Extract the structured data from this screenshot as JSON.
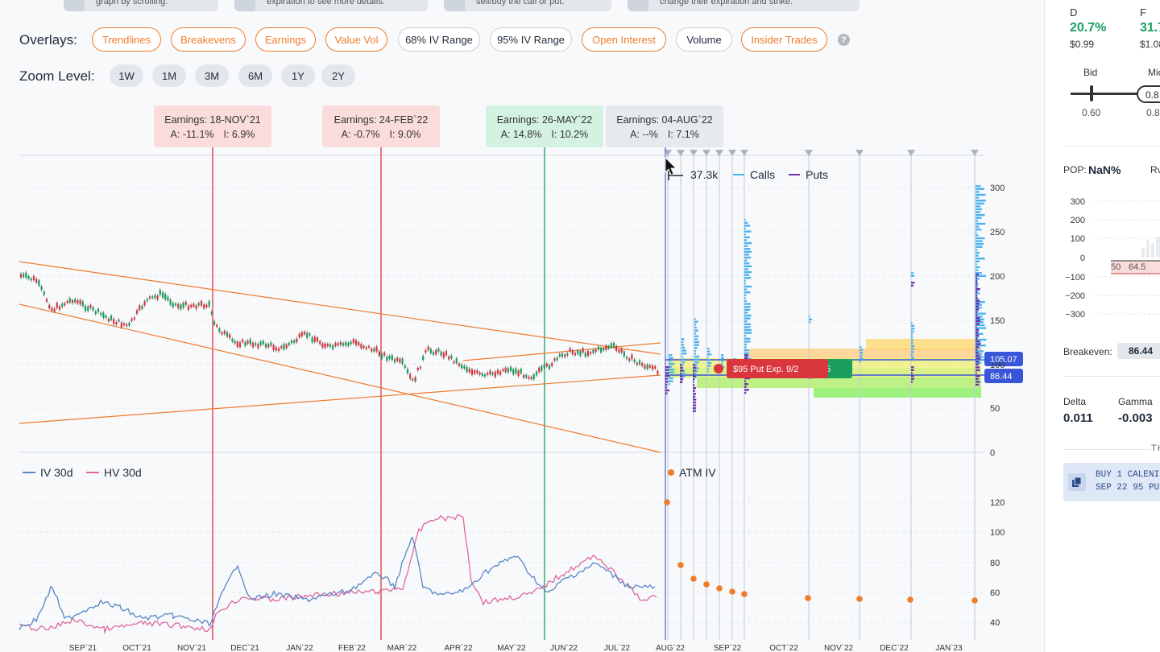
{
  "hints": [
    {
      "text": "graph by scrolling."
    },
    {
      "text": "expiration to see more details."
    },
    {
      "text": "sell/buy the call or put."
    },
    {
      "text": "change their expiration and strike."
    }
  ],
  "overlays": {
    "label": "Overlays:",
    "items": [
      {
        "label": "Trendlines",
        "active": true
      },
      {
        "label": "Breakevens",
        "active": true
      },
      {
        "label": "Earnings",
        "active": true
      },
      {
        "label": "Value Vol",
        "active": true
      },
      {
        "label": "68% IV Range",
        "active": false
      },
      {
        "label": "95% IV Range",
        "active": false
      },
      {
        "label": "Open Interest",
        "active": true
      },
      {
        "label": "Volume",
        "active": false
      },
      {
        "label": "Insider Trades",
        "active": true
      }
    ],
    "help": "?"
  },
  "zoom": {
    "label": "Zoom Level:",
    "items": [
      "1W",
      "1M",
      "3M",
      "6M",
      "1Y",
      "2Y"
    ]
  },
  "earnings": [
    {
      "title": "Earnings: 18-NOV`21",
      "a": "A: -11.1%",
      "i": "I: 6.9%",
      "tone": "red"
    },
    {
      "title": "Earnings: 24-FEB`22",
      "a": "A: -0.7%",
      "i": "I: 9.0%",
      "tone": "red"
    },
    {
      "title": "Earnings: 26-MAY`22",
      "a": "A: 14.8%",
      "i": "I: 10.2%",
      "tone": "green"
    },
    {
      "title": "Earnings: 04-AUG`22",
      "a": "A: --%",
      "i": "I: 7.1%",
      "tone": "gray"
    }
  ],
  "oi_legend": {
    "scale": "37.3k",
    "calls": "Calls",
    "puts": "Puts"
  },
  "price_axis": [
    "300",
    "250",
    "200",
    "150",
    "100",
    "50",
    "0"
  ],
  "price_tags": {
    "upper": "105.07",
    "lower": "86.44"
  },
  "position_label": "$95 Put Exp. 9/2",
  "position_label_partial": "5",
  "iv_legend": {
    "iv": "IV 30d",
    "hv": "HV 30d",
    "atm": "ATM IV"
  },
  "iv_axis": [
    "120",
    "100",
    "80",
    "60",
    "40"
  ],
  "x_axis": [
    "SEP`21",
    "OCT`21",
    "NOV`21",
    "DEC`21",
    "JAN`22",
    "FEB`22",
    "MAR`22",
    "APR`22",
    "MAY`22",
    "JUN`22",
    "JUL`22",
    "AUG`22",
    "SEP`22",
    "OCT`22",
    "NOV`22",
    "DEC`22",
    "JAN`23"
  ],
  "colors": {
    "accent": "#f07b2c",
    "calls": "#4db3f0",
    "puts": "#6b35a8",
    "iv": "#5b86c5",
    "hv": "#e0679b",
    "gain": "#1a9e5c",
    "loss": "#d9363e"
  },
  "panel": {
    "d_label": "D",
    "d_value": "20.7%",
    "d_price": "$0.99",
    "f_label": "F",
    "f_value": "31.7",
    "f_price": "$1.08",
    "bid_label": "Bid",
    "bid_value": "0.60",
    "mid_label": "Mic",
    "mid_value": "0.8",
    "mid_input": "0.8",
    "pop_label": "POP:",
    "pop_value": "NaN%",
    "rv_label": "Rv",
    "pl_axis": [
      "300",
      "200",
      "100",
      "0",
      "−100",
      "−200",
      "−300"
    ],
    "pl_x": [
      "50",
      "64.5"
    ],
    "breakeven_label": "Breakeven:",
    "breakeven_value": "86.44",
    "delta_label": "Delta",
    "delta_value": "0.011",
    "gamma_label": "Gamma",
    "gamma_value": "-0.003",
    "section_partial": "TH",
    "order_line1": "BUY 1 CALENI",
    "order_line2": "SEP 22 95 PU"
  }
}
